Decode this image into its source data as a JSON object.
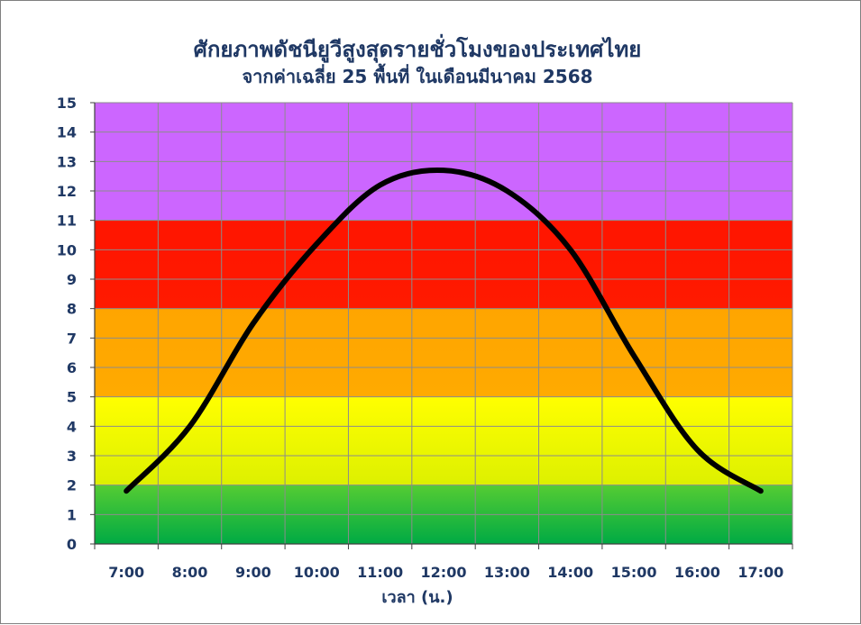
{
  "chart_data": {
    "type": "line",
    "title": "ศักยภาพดัชนียูวีสูงสุดรายชั่วโมงของประเทศไทย",
    "subtitle": "จากค่าเฉลี่ย 25 พื้นที่ ในเดือนมีนาคม 2568",
    "xlabel": "เวลา (น.)",
    "ylabel": "",
    "categories": [
      "7:00",
      "8:00",
      "9:00",
      "10:00",
      "11:00",
      "12:00",
      "13:00",
      "14:00",
      "15:00",
      "16:00",
      "17:00"
    ],
    "series": [
      {
        "values": [
          1.8,
          4.0,
          7.5,
          10.2,
          12.2,
          12.7,
          12.0,
          10.0,
          6.4,
          3.2,
          1.8
        ],
        "color": "#000000"
      }
    ],
    "ylim": [
      0,
      15
    ],
    "yticks": [
      "0",
      "1",
      "2",
      "3",
      "4",
      "5",
      "6",
      "7",
      "8",
      "9",
      "10",
      "11",
      "12",
      "13",
      "14",
      "15"
    ],
    "grid": true,
    "legend": "none",
    "bands": [
      {
        "from": 0,
        "to": 2,
        "color_top": "#55cc33",
        "color_bottom": "#00aa44"
      },
      {
        "from": 2,
        "to": 5,
        "color_top": "#ffff00",
        "color_bottom": "#ddf000"
      },
      {
        "from": 5,
        "to": 8,
        "color_top": "#ffa500",
        "color_bottom": "#ffaa00"
      },
      {
        "from": 8,
        "to": 11,
        "color_top": "#ff1500",
        "color_bottom": "#ff1a00"
      },
      {
        "from": 11,
        "to": 15,
        "color_top": "#cc66ff",
        "color_bottom": "#cc66ff"
      }
    ]
  }
}
